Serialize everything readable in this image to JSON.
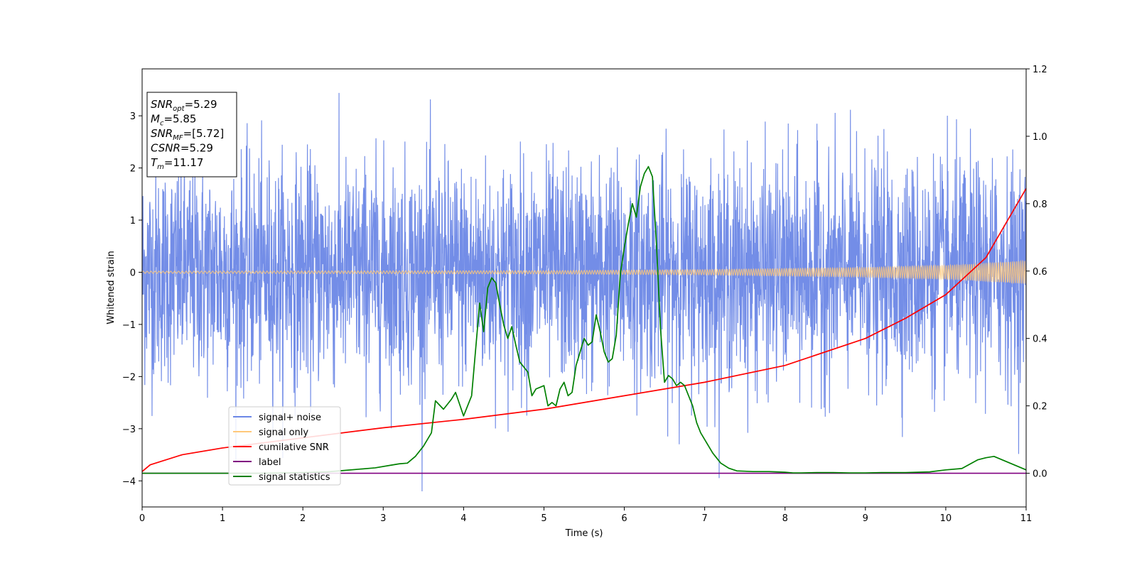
{
  "chart_data": {
    "type": "line",
    "xlabel": "Time (s)",
    "ylabel": "Whitened strain",
    "xlim": [
      0,
      11
    ],
    "ylim_left": [
      -4.5,
      3.9
    ],
    "ylim_right": [
      -0.1,
      1.2
    ],
    "xticks": [
      0,
      1,
      2,
      3,
      4,
      5,
      6,
      7,
      8,
      9,
      10,
      11
    ],
    "yticks_left": [
      -4,
      -3,
      -2,
      -1,
      0,
      1,
      2,
      3
    ],
    "yticks_right": [
      "0.0",
      "0.2",
      "0.4",
      "0.6",
      "0.8",
      "1.0",
      "1.2"
    ],
    "grid": false,
    "legend_position": "lower-left",
    "series": [
      {
        "name": "signal+ noise",
        "color": "#6b87e6",
        "axis": "left",
        "kind": "noise",
        "amplitude_range": [
          -4.2,
          3.45
        ]
      },
      {
        "name": "signal only",
        "color": "#ffc87a",
        "axis": "left",
        "kind": "chirp",
        "envelope_x": [
          0,
          5,
          7,
          8,
          9,
          10,
          10.5,
          11
        ],
        "envelope_y": [
          0.02,
          0.03,
          0.05,
          0.07,
          0.09,
          0.13,
          0.17,
          0.22
        ]
      },
      {
        "name": "cumilative SNR",
        "color": "#ff0000",
        "axis": "right",
        "x": [
          0,
          0.1,
          0.5,
          1,
          2,
          3,
          4,
          5,
          6,
          7,
          8,
          9,
          9.5,
          10,
          10.5,
          11
        ],
        "y": [
          0.005,
          0.025,
          0.055,
          0.075,
          0.105,
          0.135,
          0.16,
          0.19,
          0.23,
          0.27,
          0.32,
          0.4,
          0.46,
          0.53,
          0.64,
          0.845
        ]
      },
      {
        "name": "label",
        "color": "#800080",
        "axis": "right",
        "x": [
          0,
          11
        ],
        "y": [
          0,
          0
        ]
      },
      {
        "name": "signal statistics",
        "color": "#008000",
        "axis": "right",
        "x": [
          0,
          0.5,
          1,
          1.5,
          2,
          2.3,
          2.5,
          2.7,
          2.9,
          3.1,
          3.2,
          3.3,
          3.4,
          3.5,
          3.6,
          3.65,
          3.75,
          3.85,
          3.9,
          4.0,
          4.1,
          4.2,
          4.25,
          4.3,
          4.35,
          4.4,
          4.45,
          4.5,
          4.55,
          4.6,
          4.65,
          4.7,
          4.8,
          4.85,
          4.9,
          5.0,
          5.05,
          5.1,
          5.15,
          5.2,
          5.25,
          5.3,
          5.35,
          5.4,
          5.5,
          5.55,
          5.6,
          5.65,
          5.7,
          5.75,
          5.8,
          5.85,
          5.9,
          5.95,
          6.0,
          6.05,
          6.1,
          6.15,
          6.2,
          6.25,
          6.3,
          6.35,
          6.4,
          6.45,
          6.5,
          6.55,
          6.6,
          6.65,
          6.7,
          6.75,
          6.8,
          6.85,
          6.9,
          6.95,
          7.0,
          7.05,
          7.1,
          7.2,
          7.3,
          7.4,
          7.5,
          7.6,
          7.7,
          7.8,
          7.9,
          8.0,
          8.1,
          8.2,
          8.4,
          8.6,
          8.8,
          9.0,
          9.2,
          9.5,
          9.8,
          10.0,
          10.2,
          10.4,
          10.5,
          10.6,
          10.7,
          10.8,
          10.9,
          11.0
        ],
        "y": [
          0,
          0,
          0,
          0,
          0.002,
          0.004,
          0.008,
          0.012,
          0.016,
          0.024,
          0.028,
          0.03,
          0.05,
          0.08,
          0.12,
          0.215,
          0.19,
          0.22,
          0.24,
          0.17,
          0.23,
          0.505,
          0.42,
          0.55,
          0.58,
          0.565,
          0.5,
          0.44,
          0.4,
          0.435,
          0.38,
          0.33,
          0.3,
          0.23,
          0.25,
          0.26,
          0.2,
          0.21,
          0.2,
          0.25,
          0.27,
          0.23,
          0.24,
          0.32,
          0.4,
          0.38,
          0.39,
          0.47,
          0.42,
          0.36,
          0.33,
          0.34,
          0.41,
          0.59,
          0.67,
          0.74,
          0.8,
          0.76,
          0.85,
          0.89,
          0.91,
          0.88,
          0.68,
          0.43,
          0.27,
          0.29,
          0.28,
          0.26,
          0.27,
          0.26,
          0.23,
          0.2,
          0.15,
          0.12,
          0.1,
          0.08,
          0.06,
          0.03,
          0.015,
          0.007,
          0.006,
          0.005,
          0.005,
          0.005,
          0.004,
          0.003,
          0.001,
          0.001,
          0.002,
          0.002,
          0.001,
          0.001,
          0.002,
          0.002,
          0.004,
          0.01,
          0.014,
          0.04,
          0.046,
          0.05,
          0.04,
          0.03,
          0.02,
          0.01
        ]
      }
    ],
    "stats": [
      {
        "base": "SNR",
        "sub": "opt",
        "value": "=5.29"
      },
      {
        "base": "M",
        "sub": "c",
        "value": "=5.85"
      },
      {
        "base": "SNR",
        "sub": "MF",
        "value": "=[5.72]"
      },
      {
        "base": "CSNR",
        "sub": "",
        "value": "=5.29"
      },
      {
        "base": "T",
        "sub": "m",
        "value": "=11.17"
      }
    ]
  }
}
